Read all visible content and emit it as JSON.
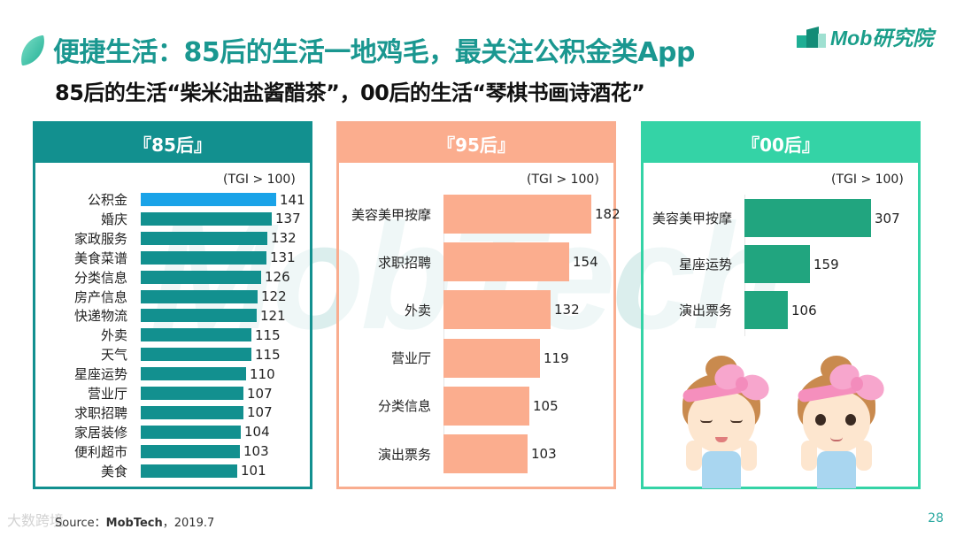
{
  "header": {
    "title": "便捷生活：85后的生活一地鸡毛，最关注公积金类App",
    "subtitle": "85后的生活“柴米油盐酱醋茶”，00后的生活“琴棋书画诗酒花”",
    "logo_text": "Mob研究院"
  },
  "watermark": "MobTech",
  "colors": {
    "teal_85": "#12908f",
    "highlight_85": "#1aa3e8",
    "salmon_95": "#fbad8e",
    "green_00": "#34d3a6",
    "bar_00": "#21a57f",
    "title": "#1a9790"
  },
  "panels": [
    {
      "id": "p85",
      "title": "『85后』",
      "tgi_note": "(TGI > 100)",
      "rows": [
        {
          "label": "公积金",
          "value": "141"
        },
        {
          "label": "婚庆",
          "value": "137"
        },
        {
          "label": "家政服务",
          "value": "132"
        },
        {
          "label": "美食菜谱",
          "value": "131"
        },
        {
          "label": "分类信息",
          "value": "126"
        },
        {
          "label": "房产信息",
          "value": "122"
        },
        {
          "label": "快递物流",
          "value": "121"
        },
        {
          "label": "外卖",
          "value": "115"
        },
        {
          "label": "天气",
          "value": "115"
        },
        {
          "label": "星座运势",
          "value": "110"
        },
        {
          "label": "营业厅",
          "value": "107"
        },
        {
          "label": "求职招聘",
          "value": "107"
        },
        {
          "label": "家居装修",
          "value": "104"
        },
        {
          "label": "便利超市",
          "value": "103"
        },
        {
          "label": "美食",
          "value": "101"
        }
      ]
    },
    {
      "id": "p95",
      "title": "『95后』",
      "tgi_note": "(TGI > 100)",
      "rows": [
        {
          "label": "美容美甲按摩",
          "value": "182"
        },
        {
          "label": "求职招聘",
          "value": "154"
        },
        {
          "label": "外卖",
          "value": "132"
        },
        {
          "label": "营业厅",
          "value": "119"
        },
        {
          "label": "分类信息",
          "value": "105"
        },
        {
          "label": "演出票务",
          "value": "103"
        }
      ]
    },
    {
      "id": "p00",
      "title": "『00后』",
      "tgi_note": "(TGI > 100)",
      "rows": [
        {
          "label": "美容美甲按摩",
          "value": "307"
        },
        {
          "label": "星座运势",
          "value": "159"
        },
        {
          "label": "演出票务",
          "value": "106"
        }
      ]
    }
  ],
  "illustration": "two-girls-face-washing",
  "footer": {
    "source_prefix": "Source：",
    "source_brand": "MobTech",
    "source_suffix": "，2019.7",
    "page_number": "28",
    "corner_watermark": "大数跨境"
  },
  "chart_data": [
    {
      "type": "bar",
      "orientation": "horizontal",
      "title": "『85后』",
      "annotation": "(TGI > 100)",
      "categories": [
        "公积金",
        "婚庆",
        "家政服务",
        "美食菜谱",
        "分类信息",
        "房产信息",
        "快递物流",
        "外卖",
        "天气",
        "星座运势",
        "营业厅",
        "求职招聘",
        "家居装修",
        "便利超市",
        "美食"
      ],
      "values": [
        141,
        137,
        132,
        131,
        126,
        122,
        121,
        115,
        115,
        110,
        107,
        107,
        104,
        103,
        101
      ],
      "highlight": "公积金",
      "xlabel": "",
      "ylabel": "",
      "grid": false
    },
    {
      "type": "bar",
      "orientation": "horizontal",
      "title": "『95后』",
      "annotation": "(TGI > 100)",
      "categories": [
        "美容美甲按摩",
        "求职招聘",
        "外卖",
        "营业厅",
        "分类信息",
        "演出票务"
      ],
      "values": [
        182,
        154,
        132,
        119,
        105,
        103
      ],
      "xlabel": "",
      "ylabel": "",
      "grid": false
    },
    {
      "type": "bar",
      "orientation": "horizontal",
      "title": "『00后』",
      "annotation": "(TGI > 100)",
      "categories": [
        "美容美甲按摩",
        "星座运势",
        "演出票务"
      ],
      "values": [
        307,
        159,
        106
      ],
      "xlabel": "",
      "ylabel": "",
      "grid": false
    }
  ]
}
